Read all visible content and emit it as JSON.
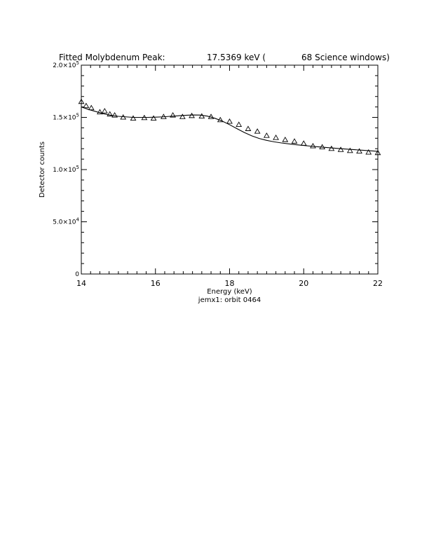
{
  "title": {
    "prefix": "Fitted Molybdenum Peak:",
    "energy": "17.5369 keV (",
    "windows": "68 Science windows)"
  },
  "subtitle": "jemx1: orbit 0464",
  "chart_data": {
    "type": "scatter",
    "xlabel": "Energy (keV)",
    "ylabel": "Detector counts",
    "xlim": [
      14,
      22
    ],
    "ylim": [
      0,
      200000
    ],
    "x_ticks": [
      "14",
      "16",
      "18",
      "20",
      "22"
    ],
    "y_ticks": [
      {
        "value": 0,
        "mantissa": "0",
        "exp": ""
      },
      {
        "value": 50000,
        "mantissa": "5.0×10",
        "exp": "4"
      },
      {
        "value": 100000,
        "mantissa": "1.0×10",
        "exp": "5"
      },
      {
        "value": 150000,
        "mantissa": "1.5×10",
        "exp": "5"
      },
      {
        "value": 200000,
        "mantissa": "2.0×10",
        "exp": "5"
      }
    ],
    "series": [
      {
        "marker": "triangle",
        "x": [
          14.0,
          14.13,
          14.27,
          14.5,
          14.63,
          14.77,
          14.9,
          15.13,
          15.4,
          15.7,
          15.95,
          16.22,
          16.47,
          16.73,
          16.98,
          17.25,
          17.5,
          17.75,
          18.0,
          18.25,
          18.5,
          18.75,
          19.0,
          19.25,
          19.5,
          19.75,
          20.0,
          20.25,
          20.5,
          20.75,
          21.0,
          21.25,
          21.5,
          21.75,
          22.0
        ],
        "y": [
          165000,
          161000,
          159000,
          155000,
          156000,
          153000,
          152000,
          150000,
          149000,
          149500,
          149000,
          150500,
          152000,
          150500,
          151500,
          151000,
          150500,
          147500,
          146000,
          143000,
          139000,
          136500,
          132500,
          130500,
          128500,
          127000,
          125000,
          122500,
          121500,
          120000,
          119000,
          118000,
          117500,
          116500,
          116000
        ]
      },
      {
        "style": "line",
        "x": [
          14.0,
          14.2,
          14.4,
          14.6,
          14.8,
          15.0,
          15.2,
          15.4,
          15.6,
          15.8,
          16.0,
          16.2,
          16.4,
          16.6,
          16.8,
          17.0,
          17.2,
          17.4,
          17.6,
          17.8,
          18.0,
          18.2,
          18.4,
          18.6,
          18.8,
          19.0,
          19.2,
          19.4,
          19.6,
          19.8,
          20.0,
          20.2,
          20.4,
          20.6,
          20.8,
          21.0,
          21.2,
          21.4,
          21.6,
          21.8,
          22.0
        ],
        "y": [
          160000,
          157500,
          155500,
          153500,
          152000,
          151000,
          150500,
          150000,
          150000,
          150000,
          150200,
          150500,
          151000,
          151500,
          152000,
          152300,
          152200,
          151200,
          149200,
          146500,
          143000,
          139200,
          135500,
          132300,
          129800,
          128000,
          126600,
          125500,
          124600,
          123800,
          123100,
          122400,
          121800,
          121200,
          120600,
          120000,
          119500,
          119000,
          118500,
          118000,
          117500
        ]
      }
    ]
  }
}
